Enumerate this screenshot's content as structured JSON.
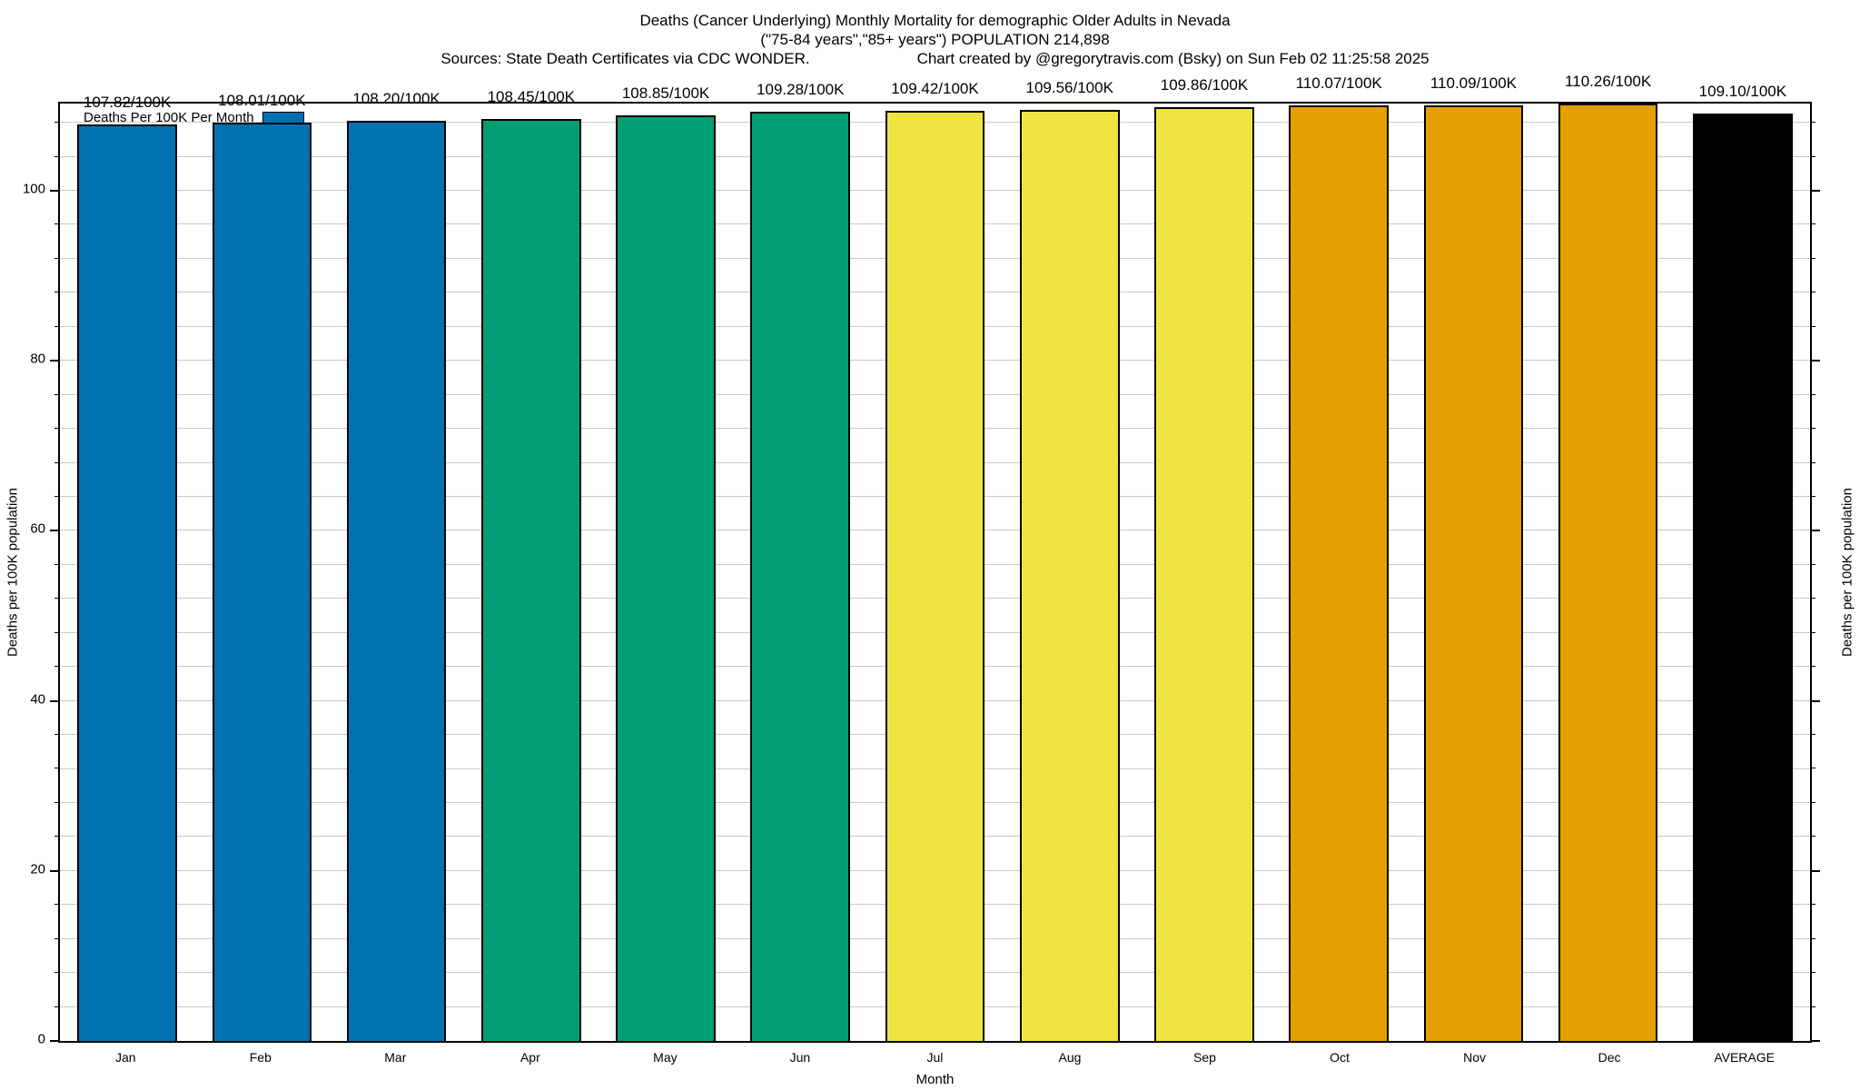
{
  "chart_data": {
    "type": "bar",
    "title": "Deaths (Cancer Underlying) Monthly Mortality for demographic Older Adults in Nevada",
    "subtitle": "(\"75-84 years\",\"85+ years\") POPULATION 214,898",
    "source_left": "Sources: State Death Certificates via CDC WONDER.",
    "source_right": "Chart created by @gregorytravis.com (Bsky) on Sun Feb 02 11:25:58 2025",
    "xlabel": "Month",
    "ylabel_left": "Deaths per 100K population",
    "ylabel_right": "Deaths per 100K population",
    "legend": {
      "label": "Deaths Per 100K Per Month",
      "swatch_color": "#0072B2",
      "position": "top-left-inside"
    },
    "categories": [
      "Jan",
      "Feb",
      "Mar",
      "Apr",
      "May",
      "Jun",
      "Jul",
      "Aug",
      "Sep",
      "Oct",
      "Nov",
      "Dec",
      "AVERAGE"
    ],
    "values": [
      107.82,
      108.01,
      108.2,
      108.45,
      108.85,
      109.28,
      109.42,
      109.56,
      109.86,
      110.07,
      110.09,
      110.26,
      109.1
    ],
    "bar_labels": [
      "107.82/100K",
      "108.01/100K",
      "108.20/100K",
      "108.45/100K",
      "108.85/100K",
      "109.28/100K",
      "109.42/100K",
      "109.56/100K",
      "109.86/100K",
      "110.07/100K",
      "110.09/100K",
      "110.26/100K",
      "109.10/100K"
    ],
    "bar_colors": [
      "#0072B2",
      "#0072B2",
      "#0072B2",
      "#009E73",
      "#009E73",
      "#009E73",
      "#F0E442",
      "#F0E442",
      "#F0E442",
      "#E69F00",
      "#E69F00",
      "#E69F00",
      "#000000"
    ],
    "ylim": [
      0,
      110.26
    ],
    "ytick_values": [
      0,
      20,
      40,
      60,
      80,
      100
    ],
    "minor_grid_step": 4,
    "grid": "horizontal",
    "legend_position": "top-left",
    "colors": {
      "grid": "#c9c9c9",
      "axis": "#000000",
      "background": "#ffffff"
    }
  }
}
